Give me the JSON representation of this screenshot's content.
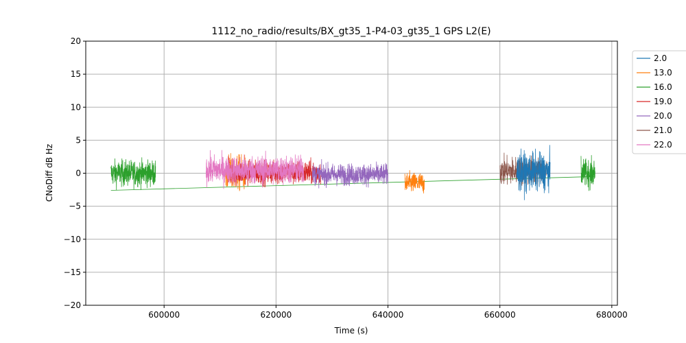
{
  "chart_data": {
    "type": "line",
    "title": "1112_no_radio/results/BX_gt35_1-P4-03_gt35_1 GPS L2(E)",
    "xlabel": "Time (s)",
    "ylabel": "CNoDiff dB Hz",
    "xlim": [
      586000,
      681000
    ],
    "ylim": [
      -20,
      20
    ],
    "xticks": [
      600000,
      620000,
      640000,
      660000,
      680000
    ],
    "yticks": [
      -20,
      -15,
      -10,
      -5,
      0,
      5,
      10,
      15,
      20
    ],
    "grid": true,
    "legend_position": "outside-top-right",
    "series": [
      {
        "name": "2.0",
        "color": "#1f77b4",
        "segments": [
          [
            663000,
            669000,
            0.2,
            1.6
          ]
        ]
      },
      {
        "name": "13.0",
        "color": "#ff7f0e",
        "segments": [
          [
            611000,
            614500,
            0.0,
            1.5
          ],
          [
            643000,
            646500,
            -1.5,
            0.9
          ]
        ]
      },
      {
        "name": "16.0",
        "color": "#2ca02c",
        "segments": [
          [
            590500,
            598500,
            0.0,
            1.1
          ],
          [
            674500,
            677000,
            0.0,
            1.2
          ]
        ],
        "trend": [
          [
            590500,
            -2.6
          ],
          [
            677000,
            -0.5
          ]
        ]
      },
      {
        "name": "19.0",
        "color": "#d62728",
        "segments": [
          [
            611500,
            628000,
            0.1,
            1.0
          ]
        ]
      },
      {
        "name": "20.0",
        "color": "#9467bd",
        "segments": [
          [
            626500,
            640000,
            -0.2,
            0.9
          ]
        ]
      },
      {
        "name": "21.0",
        "color": "#8c564b",
        "segments": [
          [
            660000,
            668500,
            0.3,
            1.2
          ]
        ]
      },
      {
        "name": "22.0",
        "color": "#e377c2",
        "segments": [
          [
            607500,
            625000,
            0.5,
            1.2
          ]
        ]
      }
    ]
  }
}
